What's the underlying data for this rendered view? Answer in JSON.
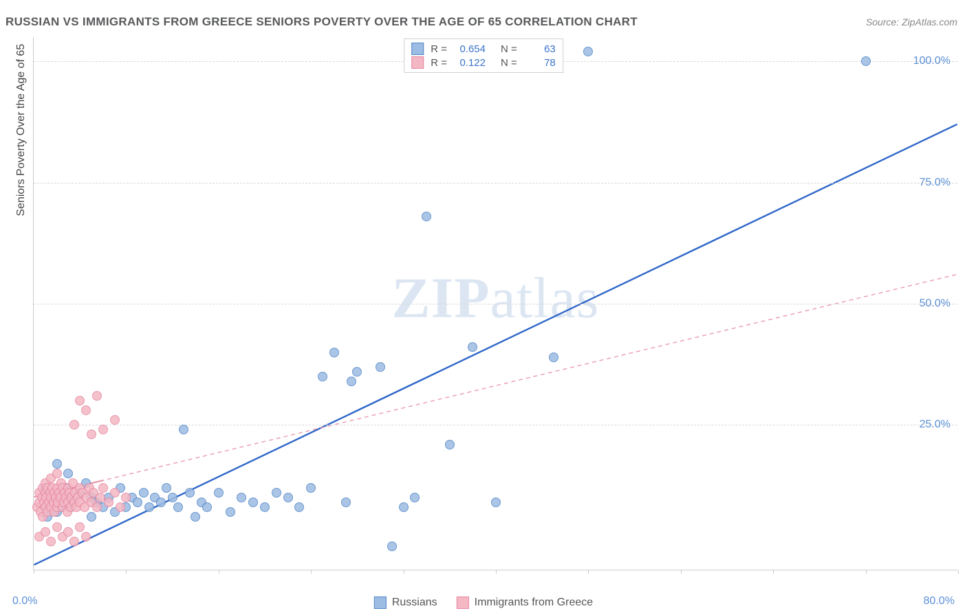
{
  "title": "RUSSIAN VS IMMIGRANTS FROM GREECE SENIORS POVERTY OVER THE AGE OF 65 CORRELATION CHART",
  "source_label": "Source: ZipAtlas.com",
  "y_axis_title": "Seniors Poverty Over the Age of 65",
  "watermark": {
    "bold": "ZIP",
    "rest": "atlas"
  },
  "chart": {
    "type": "scatter",
    "background_color": "#ffffff",
    "grid_color": "#d8d8d8",
    "axis_color": "#cccccc",
    "label_color": "#5a8fd6",
    "label_fontsize": 16,
    "title_color": "#58595b",
    "title_fontsize": 17,
    "xlim": [
      0,
      80
    ],
    "ylim": [
      -5,
      105
    ],
    "x_axis_labels": {
      "left": "0.0%",
      "right": "80.0%"
    },
    "x_ticks": [
      0,
      8,
      16,
      24,
      32,
      40,
      48,
      56,
      64,
      72,
      80
    ],
    "y_ticks": [
      {
        "value": 25,
        "label": "25.0%"
      },
      {
        "value": 50,
        "label": "50.0%"
      },
      {
        "value": 75,
        "label": "75.0%"
      },
      {
        "value": 100,
        "label": "100.0%"
      }
    ],
    "point_radius": 7,
    "point_border_width": 1.2,
    "point_fill_opacity": 0.35,
    "series": [
      {
        "name": "Russians",
        "color_fill": "#9dbce3",
        "color_stroke": "#4f86c6",
        "trend": {
          "x1": 0,
          "y1": -4,
          "x2": 80,
          "y2": 87,
          "stroke": "#2e66c9",
          "width": 2.4,
          "dash": "none"
        },
        "R": "0.654",
        "N": "63",
        "points": [
          [
            1,
            8
          ],
          [
            1,
            12
          ],
          [
            1.2,
            6
          ],
          [
            1.5,
            10
          ],
          [
            2,
            7
          ],
          [
            2,
            9
          ],
          [
            2.2,
            11
          ],
          [
            2.5,
            8
          ],
          [
            2.8,
            12
          ],
          [
            3,
            10
          ],
          [
            3.2,
            8
          ],
          [
            3.5,
            9
          ],
          [
            4,
            11
          ],
          [
            4.5,
            13
          ],
          [
            5,
            6
          ],
          [
            5,
            10
          ],
          [
            5.5,
            9
          ],
          [
            6,
            8
          ],
          [
            6.5,
            10
          ],
          [
            7,
            7
          ],
          [
            7.5,
            12
          ],
          [
            8,
            8
          ],
          [
            8.5,
            10
          ],
          [
            9,
            9
          ],
          [
            9.5,
            11
          ],
          [
            10,
            8
          ],
          [
            10.5,
            10
          ],
          [
            11,
            9
          ],
          [
            11.5,
            12
          ],
          [
            12,
            10
          ],
          [
            12.5,
            8
          ],
          [
            13,
            24
          ],
          [
            13.5,
            11
          ],
          [
            14,
            6
          ],
          [
            14.5,
            9
          ],
          [
            15,
            8
          ],
          [
            16,
            11
          ],
          [
            17,
            7
          ],
          [
            18,
            10
          ],
          [
            19,
            9
          ],
          [
            20,
            8
          ],
          [
            21,
            11
          ],
          [
            22,
            10
          ],
          [
            23,
            8
          ],
          [
            24,
            12
          ],
          [
            25,
            35
          ],
          [
            26,
            40
          ],
          [
            27,
            9
          ],
          [
            27.5,
            34
          ],
          [
            28,
            36
          ],
          [
            30,
            37
          ],
          [
            31,
            0
          ],
          [
            32,
            8
          ],
          [
            33,
            10
          ],
          [
            34,
            68
          ],
          [
            36,
            21
          ],
          [
            38,
            41
          ],
          [
            40,
            9
          ],
          [
            45,
            39
          ],
          [
            48,
            102
          ],
          [
            72,
            100
          ],
          [
            2,
            17
          ],
          [
            3,
            15
          ]
        ]
      },
      {
        "name": "Immigrants from Greece",
        "color_fill": "#f4b8c4",
        "color_stroke": "#e585a0",
        "trend": {
          "x1": 0,
          "y1": 10,
          "x2": 80,
          "y2": 56,
          "stroke": "#e99aaf",
          "width": 1.4,
          "dash": "6,5"
        },
        "trend_solid_end_x": 6,
        "R": "0.122",
        "N": "78",
        "points": [
          [
            0.3,
            8
          ],
          [
            0.5,
            9
          ],
          [
            0.5,
            11
          ],
          [
            0.6,
            7
          ],
          [
            0.7,
            10
          ],
          [
            0.8,
            12
          ],
          [
            0.8,
            6
          ],
          [
            0.9,
            9
          ],
          [
            1,
            11
          ],
          [
            1,
            8
          ],
          [
            1,
            13
          ],
          [
            1.1,
            10
          ],
          [
            1.2,
            7
          ],
          [
            1.2,
            12
          ],
          [
            1.3,
            9
          ],
          [
            1.4,
            11
          ],
          [
            1.5,
            8
          ],
          [
            1.5,
            10
          ],
          [
            1.5,
            14
          ],
          [
            1.6,
            12
          ],
          [
            1.7,
            9
          ],
          [
            1.8,
            11
          ],
          [
            1.8,
            7
          ],
          [
            1.9,
            10
          ],
          [
            2,
            12
          ],
          [
            2,
            8
          ],
          [
            2,
            15
          ],
          [
            2.1,
            9
          ],
          [
            2.2,
            11
          ],
          [
            2.3,
            10
          ],
          [
            2.4,
            13
          ],
          [
            2.5,
            8
          ],
          [
            2.5,
            12
          ],
          [
            2.6,
            9
          ],
          [
            2.7,
            11
          ],
          [
            2.8,
            10
          ],
          [
            2.9,
            7
          ],
          [
            3,
            12
          ],
          [
            3,
            9
          ],
          [
            3.1,
            11
          ],
          [
            3.2,
            8
          ],
          [
            3.3,
            10
          ],
          [
            3.4,
            13
          ],
          [
            3.5,
            9
          ],
          [
            3.5,
            25
          ],
          [
            3.6,
            11
          ],
          [
            3.7,
            8
          ],
          [
            3.8,
            10
          ],
          [
            4,
            12
          ],
          [
            4,
            9
          ],
          [
            4,
            30
          ],
          [
            4.2,
            11
          ],
          [
            4.4,
            8
          ],
          [
            4.5,
            28
          ],
          [
            4.6,
            10
          ],
          [
            4.8,
            12
          ],
          [
            5,
            9
          ],
          [
            5,
            23
          ],
          [
            5.2,
            11
          ],
          [
            5.5,
            8
          ],
          [
            5.5,
            31
          ],
          [
            5.8,
            10
          ],
          [
            6,
            12
          ],
          [
            6,
            24
          ],
          [
            6.5,
            9
          ],
          [
            7,
            11
          ],
          [
            7,
            26
          ],
          [
            7.5,
            8
          ],
          [
            8,
            10
          ],
          [
            0.5,
            2
          ],
          [
            1,
            3
          ],
          [
            1.5,
            1
          ],
          [
            2,
            4
          ],
          [
            2.5,
            2
          ],
          [
            3,
            3
          ],
          [
            3.5,
            1
          ],
          [
            4,
            4
          ],
          [
            4.5,
            2
          ]
        ]
      }
    ]
  },
  "legend_top": {
    "rows": [
      {
        "swatch_fill": "#9dbce3",
        "swatch_stroke": "#4f86c6",
        "R_label": "R =",
        "R": "0.654",
        "N_label": "N =",
        "N": "63"
      },
      {
        "swatch_fill": "#f4b8c4",
        "swatch_stroke": "#e585a0",
        "R_label": "R =",
        "R": "0.122",
        "N_label": "N =",
        "N": "78"
      }
    ]
  },
  "legend_bottom": {
    "items": [
      {
        "swatch_fill": "#9dbce3",
        "swatch_stroke": "#4f86c6",
        "label": "Russians"
      },
      {
        "swatch_fill": "#f4b8c4",
        "swatch_stroke": "#e585a0",
        "label": "Immigrants from Greece"
      }
    ]
  }
}
